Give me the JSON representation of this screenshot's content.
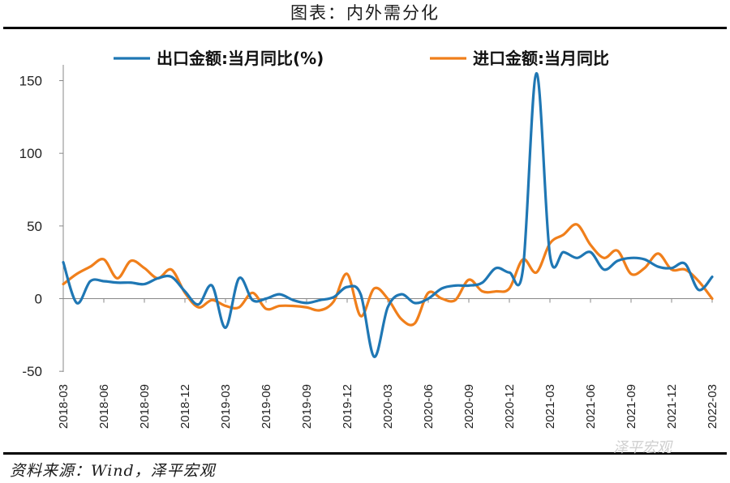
{
  "title": "图表：内外需分化",
  "source": "资料来源：Wind，泽平宏观",
  "watermark": "泽平宏观",
  "colors": {
    "export": "#1f77b4",
    "import": "#f07f1b"
  },
  "chart_data": {
    "type": "line",
    "title": "图表：内外需分化",
    "legend_position": "top",
    "ylim": [
      -50,
      160
    ],
    "yticks": [
      150,
      100,
      50,
      0,
      -50
    ],
    "xtick_labels": [
      "2018-03",
      "2018-06",
      "2018-09",
      "2018-12",
      "2019-03",
      "2019-06",
      "2019-09",
      "2019-12",
      "2020-03",
      "2020-06",
      "2020-09",
      "2020-12",
      "2021-03",
      "2021-06",
      "2021-09",
      "2021-12",
      "2022-03"
    ],
    "x": [
      "2018-03",
      "2018-04",
      "2018-05",
      "2018-06",
      "2018-07",
      "2018-08",
      "2018-09",
      "2018-10",
      "2018-11",
      "2018-12",
      "2019-01",
      "2019-02",
      "2019-03",
      "2019-04",
      "2019-05",
      "2019-06",
      "2019-07",
      "2019-08",
      "2019-09",
      "2019-10",
      "2019-11",
      "2019-12",
      "2020-01",
      "2020-02",
      "2020-03",
      "2020-04",
      "2020-05",
      "2020-06",
      "2020-07",
      "2020-08",
      "2020-09",
      "2020-10",
      "2020-11",
      "2020-12",
      "2021-01",
      "2021-02",
      "2021-03",
      "2021-04",
      "2021-05",
      "2021-06",
      "2021-07",
      "2021-08",
      "2021-09",
      "2021-10",
      "2021-11",
      "2021-12",
      "2022-01",
      "2022-02",
      "2022-03"
    ],
    "series": [
      {
        "name": "出口金额:当月同比(%)",
        "values": [
          25,
          -3,
          12,
          12,
          11,
          11,
          10,
          14,
          15,
          5,
          -4,
          9,
          -20,
          14,
          -1,
          0,
          3,
          -1,
          -3,
          -1,
          1,
          8,
          3,
          -40,
          -6,
          3,
          -3,
          0,
          7,
          9,
          9,
          11,
          21,
          18,
          20,
          155,
          30,
          32,
          28,
          32,
          20,
          26,
          28,
          27,
          22,
          21,
          24,
          6,
          15
        ]
      },
      {
        "name": "进口金额:当月同比",
        "values": [
          10,
          17,
          22,
          27,
          14,
          26,
          21,
          14,
          20,
          4,
          -6,
          -1,
          -5,
          -6,
          4,
          -7,
          -5,
          -5,
          -6,
          -8,
          -2,
          17,
          -12,
          7,
          0,
          -14,
          -17,
          4,
          0,
          -1,
          13,
          5,
          5,
          7,
          27,
          18,
          38,
          44,
          51,
          37,
          28,
          33,
          17,
          21,
          31,
          20,
          20,
          12,
          0
        ]
      }
    ]
  }
}
